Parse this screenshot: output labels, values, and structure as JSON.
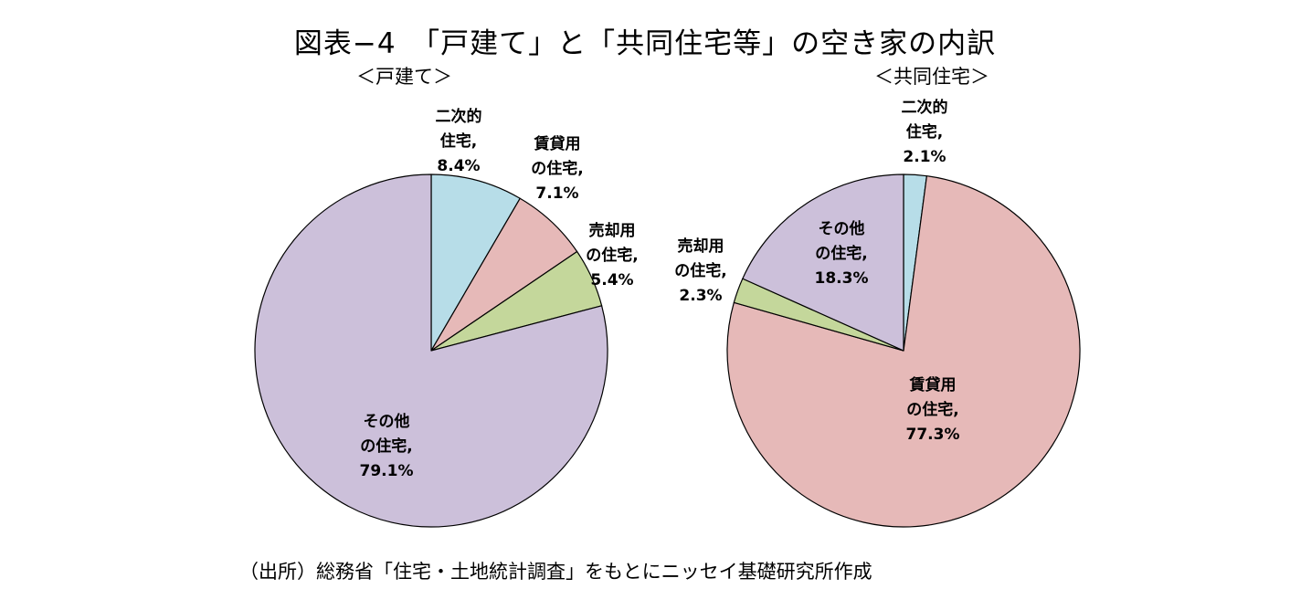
{
  "title": "図表−4　「戸建て」と「共同住宅等」の空き家の内訳",
  "source": "（出所）総務省「住宅・土地統計調査」をもとにニッセイ基礎研究所作成",
  "chart_data": [
    {
      "type": "pie",
      "title": "＜戸建て＞",
      "slices": [
        {
          "label_lines": [
            "二次的",
            "住宅,"
          ],
          "value": 8.4,
          "value_label": "8.4%",
          "color": "#b7dde8"
        },
        {
          "label_lines": [
            "賃貸用",
            "の住宅,"
          ],
          "value": 7.1,
          "value_label": "7.1%",
          "color": "#e6b9b8"
        },
        {
          "label_lines": [
            "売却用",
            "の住宅,"
          ],
          "value": 5.4,
          "value_label": "5.4%",
          "color": "#c4d79b"
        },
        {
          "label_lines": [
            "その他",
            "の住宅,"
          ],
          "value": 79.1,
          "value_label": "79.1%",
          "color": "#ccc0da"
        }
      ]
    },
    {
      "type": "pie",
      "title": "＜共同住宅＞",
      "slices": [
        {
          "label_lines": [
            "二次的",
            "住宅,"
          ],
          "value": 2.1,
          "value_label": "2.1%",
          "color": "#b7dde8"
        },
        {
          "label_lines": [
            "賃貸用",
            "の住宅,"
          ],
          "value": 77.3,
          "value_label": "77.3%",
          "color": "#e6b9b8"
        },
        {
          "label_lines": [
            "売却用",
            "の住宅,"
          ],
          "value": 2.3,
          "value_label": "2.3%",
          "color": "#c4d79b"
        },
        {
          "label_lines": [
            "その他",
            "の住宅,"
          ],
          "value": 18.3,
          "value_label": "18.3%",
          "color": "#ccc0da"
        }
      ]
    }
  ]
}
